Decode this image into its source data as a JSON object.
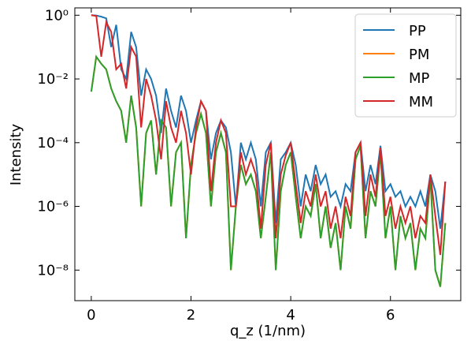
{
  "chart_data": {
    "type": "line",
    "xlabel": "q_z (1/nm)",
    "ylabel": "Intensity",
    "yscale": "log",
    "legend": "upper right",
    "xlim": [
      -0.33,
      7.41
    ],
    "ylim": [
      1.1e-09,
      1.7
    ],
    "xticks": [
      0,
      2,
      4,
      6
    ],
    "yticks": [
      {
        "value": 1e-08,
        "label": "10⁻⁸"
      },
      {
        "value": 1e-06,
        "label": "10⁻⁶"
      },
      {
        "value": 0.0001,
        "label": "10⁻⁴"
      },
      {
        "value": 0.01,
        "label": "10⁻²"
      },
      {
        "value": 1,
        "label": "10⁰"
      }
    ],
    "x": [
      0,
      0.1,
      0.2,
      0.3,
      0.4,
      0.5,
      0.6,
      0.7,
      0.8,
      0.9,
      1.0,
      1.1,
      1.2,
      1.3,
      1.4,
      1.5,
      1.6,
      1.7,
      1.8,
      1.9,
      2.0,
      2.1,
      2.2,
      2.3,
      2.4,
      2.5,
      2.6,
      2.7,
      2.8,
      2.9,
      3.0,
      3.1,
      3.2,
      3.3,
      3.4,
      3.5,
      3.6,
      3.7,
      3.8,
      3.9,
      4.0,
      4.1,
      4.2,
      4.3,
      4.4,
      4.5,
      4.6,
      4.7,
      4.8,
      4.9,
      5.0,
      5.1,
      5.2,
      5.3,
      5.4,
      5.5,
      5.6,
      5.7,
      5.8,
      5.9,
      6.0,
      6.1,
      6.2,
      6.3,
      6.4,
      6.5,
      6.6,
      6.7,
      6.8,
      6.9,
      7.0,
      7.1
    ],
    "series": [
      {
        "name": "PP",
        "color": "#1f77b4",
        "values": [
          1,
          0.98,
          0.9,
          0.8,
          0.1,
          0.5,
          0.02,
          0.01,
          0.3,
          0.1,
          0.003,
          0.02,
          0.01,
          0.003,
          0.0002,
          0.005,
          0.001,
          0.0003,
          0.003,
          0.001,
          0.0001,
          0.0005,
          0.002,
          0.001,
          3e-05,
          0.0002,
          0.0005,
          0.0003,
          5e-05,
          1e-06,
          0.0001,
          3e-05,
          0.0001,
          3e-05,
          1e-06,
          5e-05,
          0.0001,
          3e-07,
          3e-05,
          5e-05,
          0.0001,
          2e-05,
          1e-06,
          1e-05,
          3e-06,
          2e-05,
          5e-06,
          1e-05,
          2e-06,
          3e-06,
          1e-06,
          5e-06,
          3e-06,
          5e-05,
          0.0001,
          3e-06,
          2e-05,
          5e-06,
          8e-05,
          3e-06,
          5e-06,
          2e-06,
          3e-06,
          1e-06,
          2e-06,
          1e-06,
          3e-06,
          1e-06,
          1e-05,
          3e-06,
          2e-07,
          6e-06
        ]
      },
      {
        "name": "PM",
        "color": "#ff7f0e",
        "values": [
          0.004,
          0.05,
          0.03,
          0.02,
          0.005,
          0.002,
          0.001,
          0.0001,
          0.003,
          0.0003,
          1e-06,
          0.0002,
          0.0005,
          1e-05,
          0.0005,
          0.0003,
          1e-06,
          5e-05,
          0.0001,
          1e-07,
          2e-05,
          0.0002,
          0.0008,
          0.0002,
          1e-06,
          5e-05,
          0.0002,
          5e-05,
          1e-08,
          1e-06,
          2e-05,
          5e-06,
          1e-05,
          3e-06,
          1e-07,
          2e-06,
          5e-05,
          1e-08,
          3e-06,
          2e-05,
          5e-05,
          2e-06,
          1e-07,
          1e-06,
          5e-07,
          5e-06,
          1e-07,
          1e-06,
          5e-08,
          3e-07,
          1e-08,
          1e-06,
          2e-07,
          3e-05,
          8e-05,
          1e-07,
          3e-06,
          1e-06,
          5e-05,
          1e-07,
          1e-06,
          1e-08,
          5e-07,
          1e-07,
          3e-07,
          1e-08,
          2e-07,
          1e-07,
          8e-06,
          1e-08,
          3e-09,
          3e-07
        ]
      },
      {
        "name": "MP",
        "color": "#2ca02c",
        "values": [
          0.004,
          0.05,
          0.03,
          0.02,
          0.005,
          0.002,
          0.001,
          0.0001,
          0.003,
          0.0003,
          1e-06,
          0.0002,
          0.0005,
          1e-05,
          0.0005,
          0.0003,
          1e-06,
          5e-05,
          0.0001,
          1e-07,
          2e-05,
          0.0002,
          0.0008,
          0.0002,
          1e-06,
          5e-05,
          0.0002,
          5e-05,
          1e-08,
          1e-06,
          2e-05,
          5e-06,
          1e-05,
          3e-06,
          1e-07,
          2e-06,
          5e-05,
          1e-08,
          3e-06,
          2e-05,
          5e-05,
          2e-06,
          1e-07,
          1e-06,
          5e-07,
          5e-06,
          1e-07,
          1e-06,
          5e-08,
          3e-07,
          1e-08,
          1e-06,
          2e-07,
          3e-05,
          8e-05,
          1e-07,
          3e-06,
          1e-06,
          5e-05,
          1e-07,
          1e-06,
          1e-08,
          5e-07,
          1e-07,
          3e-07,
          1e-08,
          2e-07,
          1e-07,
          8e-06,
          1e-08,
          3e-09,
          3e-07
        ]
      },
      {
        "name": "MM",
        "color": "#d62728",
        "values": [
          1,
          0.95,
          0.05,
          0.6,
          0.3,
          0.02,
          0.03,
          0.005,
          0.1,
          0.05,
          0.0003,
          0.01,
          0.003,
          0.0005,
          3e-05,
          0.002,
          0.0003,
          0.0001,
          0.001,
          0.0002,
          1e-05,
          0.0003,
          0.002,
          0.001,
          3e-06,
          0.0001,
          0.0005,
          0.0002,
          1e-06,
          1e-06,
          5e-05,
          1e-05,
          3e-05,
          1e-05,
          2e-07,
          2e-05,
          0.0001,
          1e-07,
          1e-05,
          4e-05,
          0.0001,
          5e-06,
          3e-07,
          3e-06,
          1e-06,
          1e-05,
          1e-06,
          3e-06,
          2e-07,
          1e-06,
          1e-07,
          2e-06,
          5e-07,
          5e-05,
          0.0001,
          5e-07,
          1e-05,
          2e-06,
          7e-05,
          5e-07,
          2e-06,
          2e-07,
          1e-06,
          3e-07,
          1e-06,
          1e-07,
          5e-07,
          3e-07,
          1e-05,
          5e-07,
          3e-08,
          6e-06
        ]
      }
    ]
  }
}
